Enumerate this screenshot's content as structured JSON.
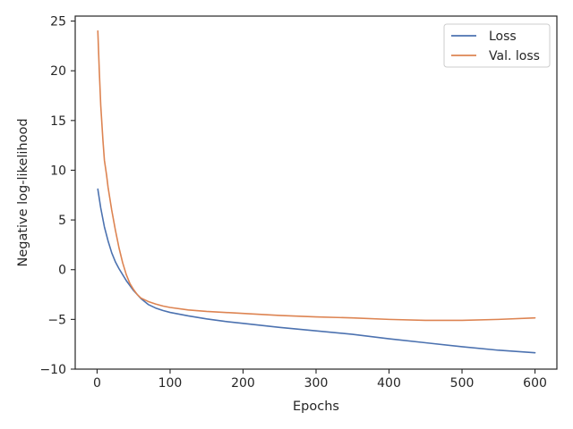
{
  "chart_data": {
    "type": "line",
    "title": "",
    "xlabel": "Epochs",
    "ylabel": "Negative log-likelihood",
    "xlim": [
      -30,
      630
    ],
    "ylim": [
      -10,
      25.5
    ],
    "x_ticks": [
      0,
      100,
      200,
      300,
      400,
      500,
      600
    ],
    "y_ticks": [
      -10,
      -5,
      0,
      5,
      10,
      15,
      20,
      25
    ],
    "x_tick_labels": [
      "0",
      "100",
      "200",
      "300",
      "400",
      "500",
      "600"
    ],
    "y_tick_labels": [
      "−10",
      "−5",
      "0",
      "5",
      "10",
      "15",
      "20",
      "25"
    ],
    "grid": false,
    "legend_position": "top-right",
    "series": [
      {
        "name": "Loss",
        "color": "#4c72b0",
        "x": [
          1,
          5,
          10,
          15,
          20,
          25,
          30,
          40,
          50,
          60,
          70,
          80,
          90,
          100,
          125,
          150,
          175,
          200,
          250,
          300,
          350,
          400,
          450,
          500,
          550,
          600
        ],
        "y": [
          8.1,
          6.2,
          4.3,
          2.9,
          1.7,
          0.8,
          0.1,
          -1.1,
          -2.1,
          -2.9,
          -3.5,
          -3.85,
          -4.1,
          -4.3,
          -4.65,
          -4.95,
          -5.2,
          -5.4,
          -5.8,
          -6.15,
          -6.5,
          -6.95,
          -7.35,
          -7.75,
          -8.1,
          -8.35
        ]
      },
      {
        "name": "Val. loss",
        "color": "#dd8452",
        "x": [
          1,
          3,
          5,
          8,
          10,
          13,
          15,
          20,
          25,
          30,
          35,
          40,
          45,
          50,
          55,
          60,
          70,
          80,
          90,
          100,
          125,
          150,
          200,
          250,
          300,
          350,
          400,
          450,
          500,
          550,
          600
        ],
        "y": [
          24.0,
          20.0,
          16.5,
          13.0,
          11.0,
          9.5,
          8.3,
          6.0,
          4.0,
          2.2,
          0.7,
          -0.5,
          -1.4,
          -2.0,
          -2.5,
          -2.85,
          -3.2,
          -3.45,
          -3.65,
          -3.8,
          -4.05,
          -4.2,
          -4.4,
          -4.6,
          -4.75,
          -4.85,
          -5.0,
          -5.1,
          -5.1,
          -5.0,
          -4.85
        ]
      }
    ]
  }
}
